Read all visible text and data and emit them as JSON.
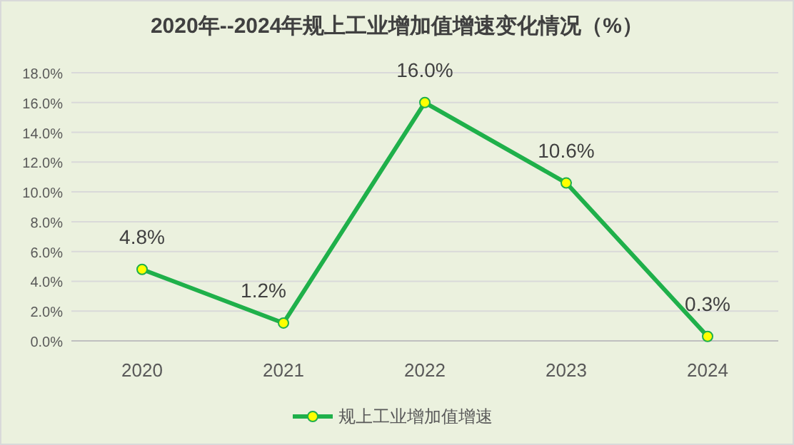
{
  "chart_data": {
    "type": "line",
    "title": "2020年--2024年规上工业增加值增速变化情况（%）",
    "categories": [
      "2020",
      "2021",
      "2022",
      "2023",
      "2024"
    ],
    "series": [
      {
        "name": "规上工业增加值增速",
        "color": "#1fb04a",
        "values": [
          4.8,
          1.2,
          16.0,
          10.6,
          0.3
        ],
        "value_labels": [
          "4.8%",
          "1.2%",
          "16.0%",
          "10.6%",
          "0.3%"
        ]
      }
    ],
    "ylim": [
      0,
      18
    ],
    "yticks": [
      {
        "value": 0,
        "label": "0.0%"
      },
      {
        "value": 2,
        "label": "2.0%"
      },
      {
        "value": 4,
        "label": "4.0%"
      },
      {
        "value": 6,
        "label": "6.0%"
      },
      {
        "value": 8,
        "label": "8.0%"
      },
      {
        "value": 10,
        "label": "10.0%"
      },
      {
        "value": 12,
        "label": "12.0%"
      },
      {
        "value": 14,
        "label": "14.0%"
      },
      {
        "value": 16,
        "label": "16.0%"
      },
      {
        "value": 18,
        "label": "18.0%"
      }
    ],
    "grid": "y",
    "legend": "bottom",
    "marker": "circle",
    "line_style": "solid"
  }
}
